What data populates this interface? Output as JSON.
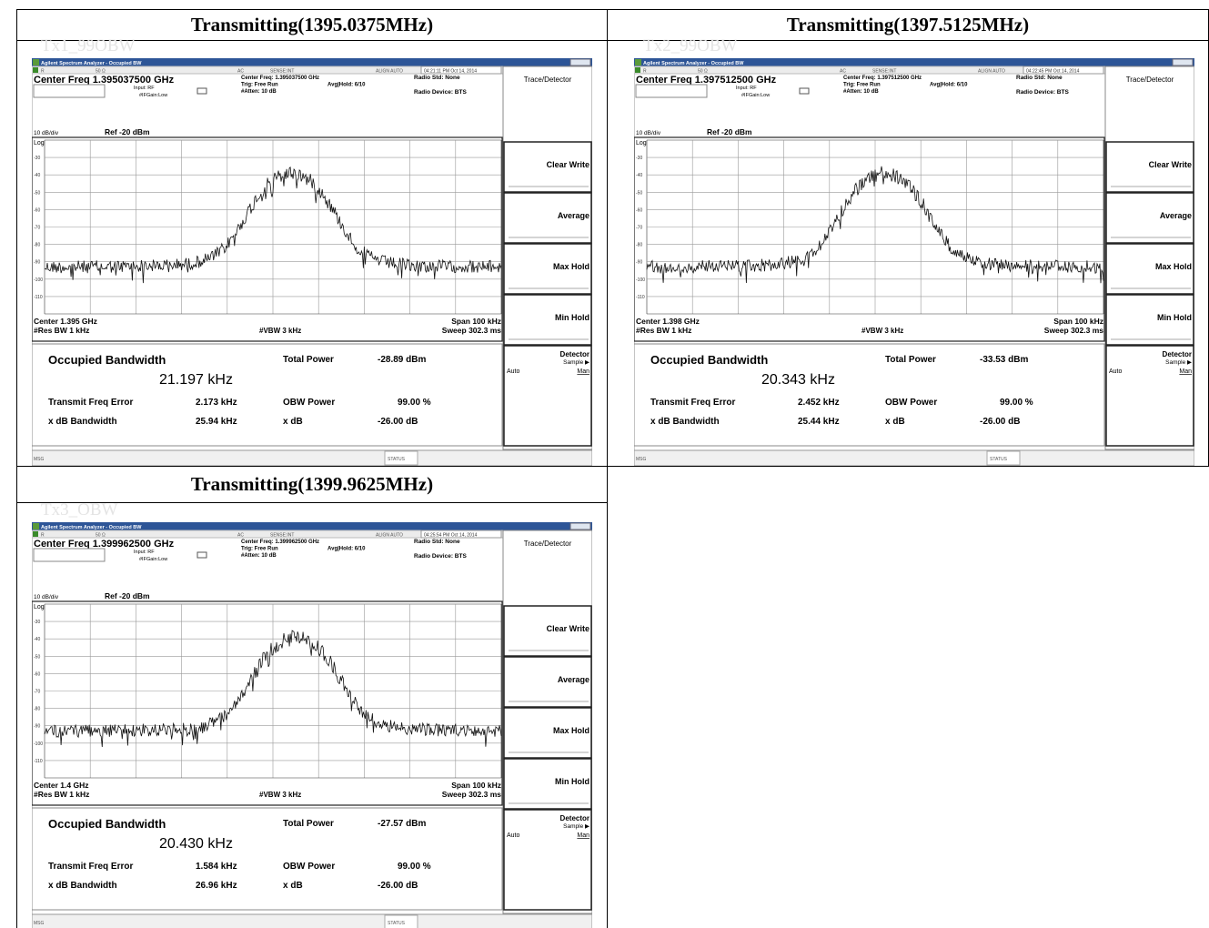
{
  "table": {
    "cells": [
      {
        "heading": "Transmitting(1395.0375MHz)",
        "caption": "Tx1_99OBW",
        "screen": {
          "timestamp": "04:21:11 PM Oct 14, 2014",
          "center_freq": "Center Freq 1.395037500 GHz",
          "center_freq_info": "Center Freq: 1.395037500 GHz",
          "center": "Center 1.395 GHz",
          "obw": "21.197 kHz",
          "total_power": "-28.89 dBm",
          "freq_error": "2.173 kHz",
          "xdb_bandwidth": "25.94 kHz"
        }
      },
      {
        "heading": "Transmitting(1397.5125MHz)",
        "caption": "Tx2_99OBW",
        "screen": {
          "timestamp": "04:22:45 PM Oct 14, 2014",
          "center_freq": "Center Freq 1.397512500 GHz",
          "center_freq_info": "Center Freq: 1.397512500 GHz",
          "center": "Center 1.398 GHz",
          "obw": "20.343 kHz",
          "total_power": "-33.53 dBm",
          "freq_error": "2.452 kHz",
          "xdb_bandwidth": "25.44 kHz"
        }
      },
      {
        "heading": "Transmitting(1399.9625MHz)",
        "caption": "Tx3_OBW",
        "screen": {
          "timestamp": "04:25:54 PM Oct 14, 2014",
          "center_freq": "Center Freq 1.399962500 GHz",
          "center_freq_info": "Center Freq: 1.399962500 GHz",
          "center": "Center 1.4 GHz",
          "obw": "20.430 kHz",
          "total_power": "-27.57 dBm",
          "freq_error": "1.584 kHz",
          "xdb_bandwidth": "26.96 kHz"
        }
      }
    ]
  },
  "analyzer": {
    "window_title": "Agilent Spectrum Analyzer - Occupied BW",
    "status_items": [
      "R",
      "50 Ω",
      "AC",
      "SENSE:INT",
      "ALIGN AUTO"
    ],
    "input": "Input: RF",
    "ifgain": "#IFGain:Low",
    "trig": "Trig: Free Run",
    "avg": "Avg|Hold: 6/10",
    "atten": "#Atten: 10 dB",
    "radio_std": "Radio Std: None",
    "radio_device": "Radio Device: BTS",
    "scale": "10 dB/div",
    "ref": "Ref -20 dBm",
    "log": "Log",
    "levels": [
      "-30",
      "-40",
      "-50",
      "-60",
      "-70",
      "-80",
      "-90",
      "-100",
      "-110"
    ],
    "span": "Span 100 kHz",
    "rbw": "#Res BW 1 kHz",
    "vbw": "#VBW 3 kHz",
    "sweep": "Sweep 302.3 ms",
    "obw_label": "Occupied Bandwidth",
    "total_power_label": "Total Power",
    "freq_error_label": "Transmit Freq Error",
    "obw_power_label": "OBW Power",
    "obw_power_value": "99.00 %",
    "xdb_bw_label": "x dB Bandwidth",
    "xdb_label": "x dB",
    "xdb_value": "-26.00 dB",
    "menu": "Trace/Detector",
    "softkeys": [
      "Clear Write",
      "Average",
      "Max Hold",
      "Min Hold"
    ],
    "detector": "Detector",
    "sample": "Sample ▶",
    "auto": "Auto",
    "man": "Man",
    "msg": "MSG",
    "status": "STATUS"
  }
}
